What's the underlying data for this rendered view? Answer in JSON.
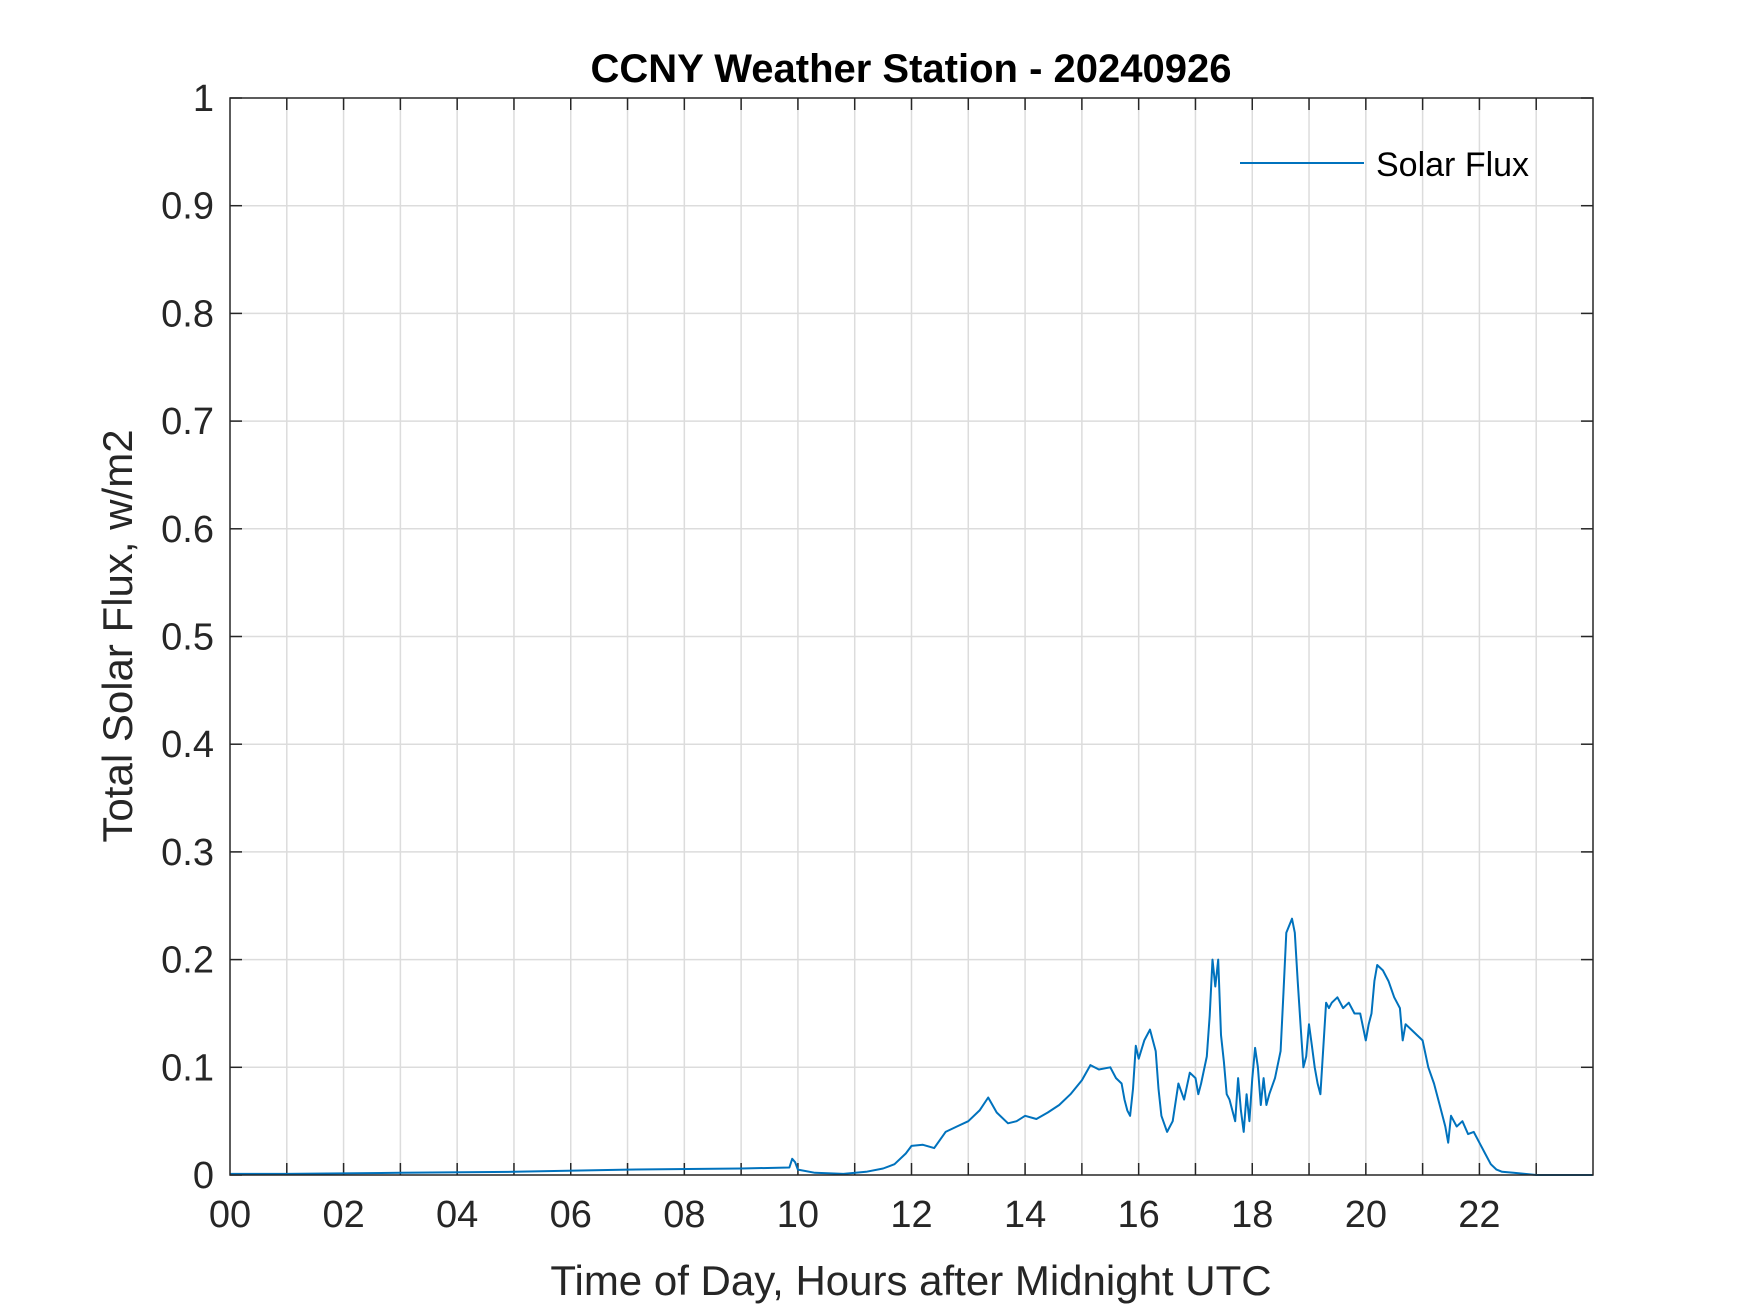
{
  "chart_data": {
    "type": "line",
    "title": "CCNY Weather Station - 20240926",
    "xlabel": "Time of Day, Hours after Midnight UTC",
    "ylabel": "Total Solar Flux, w/m2",
    "xlim": [
      0,
      24
    ],
    "ylim": [
      0,
      1
    ],
    "xticks": [
      0,
      2,
      4,
      6,
      8,
      10,
      12,
      14,
      16,
      18,
      20,
      22
    ],
    "xtick_labels": [
      "00",
      "02",
      "04",
      "06",
      "08",
      "10",
      "12",
      "14",
      "16",
      "18",
      "20",
      "22"
    ],
    "yticks": [
      0,
      0.1,
      0.2,
      0.3,
      0.4,
      0.5,
      0.6,
      0.7,
      0.8,
      0.9,
      1
    ],
    "ytick_labels": [
      "0",
      "0.1",
      "0.2",
      "0.3",
      "0.4",
      "0.5",
      "0.6",
      "0.7",
      "0.8",
      "0.9",
      "1"
    ],
    "grid": true,
    "legend": {
      "location": "top-right",
      "entries": [
        "Solar Flux"
      ]
    },
    "series": [
      {
        "name": "Solar Flux",
        "color": "#0072BD",
        "x": [
          0,
          1,
          3,
          5,
          7,
          9,
          9.85,
          9.9,
          9.95,
          10.0,
          10.3,
          10.8,
          11.2,
          11.5,
          11.7,
          11.9,
          12.0,
          12.2,
          12.4,
          12.6,
          12.8,
          13.0,
          13.2,
          13.35,
          13.5,
          13.7,
          13.85,
          14.0,
          14.2,
          14.4,
          14.6,
          14.8,
          15.0,
          15.15,
          15.3,
          15.5,
          15.6,
          15.7,
          15.75,
          15.8,
          15.85,
          15.9,
          15.95,
          16.0,
          16.1,
          16.2,
          16.3,
          16.35,
          16.4,
          16.5,
          16.6,
          16.7,
          16.8,
          16.9,
          17.0,
          17.05,
          17.1,
          17.2,
          17.25,
          17.3,
          17.35,
          17.4,
          17.45,
          17.5,
          17.55,
          17.6,
          17.7,
          17.75,
          17.8,
          17.85,
          17.9,
          17.95,
          18.0,
          18.05,
          18.1,
          18.15,
          18.2,
          18.25,
          18.3,
          18.4,
          18.5,
          18.55,
          18.6,
          18.7,
          18.75,
          18.8,
          18.85,
          18.9,
          18.95,
          19.0,
          19.05,
          19.1,
          19.15,
          19.2,
          19.3,
          19.35,
          19.4,
          19.5,
          19.6,
          19.7,
          19.8,
          19.9,
          20.0,
          20.05,
          20.1,
          20.15,
          20.2,
          20.3,
          20.4,
          20.5,
          20.6,
          20.65,
          20.7,
          20.8,
          20.9,
          21.0,
          21.1,
          21.2,
          21.3,
          21.4,
          21.45,
          21.5,
          21.6,
          21.7,
          21.8,
          21.9,
          22.0,
          22.1,
          22.2,
          22.3,
          22.4,
          22.6,
          22.8,
          23.0,
          23.99
        ],
        "y": [
          0.001,
          0.001,
          0.002,
          0.003,
          0.005,
          0.006,
          0.007,
          0.015,
          0.012,
          0.005,
          0.002,
          0.001,
          0.003,
          0.006,
          0.01,
          0.02,
          0.027,
          0.028,
          0.025,
          0.04,
          0.045,
          0.05,
          0.06,
          0.072,
          0.058,
          0.048,
          0.05,
          0.055,
          0.052,
          0.058,
          0.065,
          0.075,
          0.088,
          0.102,
          0.098,
          0.1,
          0.09,
          0.085,
          0.07,
          0.06,
          0.055,
          0.08,
          0.12,
          0.108,
          0.125,
          0.135,
          0.115,
          0.08,
          0.055,
          0.04,
          0.05,
          0.085,
          0.07,
          0.095,
          0.09,
          0.075,
          0.085,
          0.11,
          0.148,
          0.2,
          0.175,
          0.2,
          0.13,
          0.105,
          0.075,
          0.07,
          0.05,
          0.09,
          0.06,
          0.04,
          0.075,
          0.05,
          0.09,
          0.118,
          0.1,
          0.065,
          0.09,
          0.065,
          0.075,
          0.09,
          0.115,
          0.17,
          0.225,
          0.238,
          0.225,
          0.18,
          0.14,
          0.1,
          0.11,
          0.14,
          0.12,
          0.1,
          0.085,
          0.075,
          0.16,
          0.155,
          0.16,
          0.165,
          0.155,
          0.16,
          0.15,
          0.15,
          0.125,
          0.14,
          0.15,
          0.18,
          0.195,
          0.19,
          0.18,
          0.165,
          0.155,
          0.125,
          0.14,
          0.135,
          0.13,
          0.125,
          0.1,
          0.085,
          0.065,
          0.045,
          0.03,
          0.055,
          0.045,
          0.05,
          0.038,
          0.04,
          0.03,
          0.02,
          0.01,
          0.005,
          0.003,
          0.002,
          0.001,
          0.0,
          0.0
        ]
      }
    ]
  }
}
